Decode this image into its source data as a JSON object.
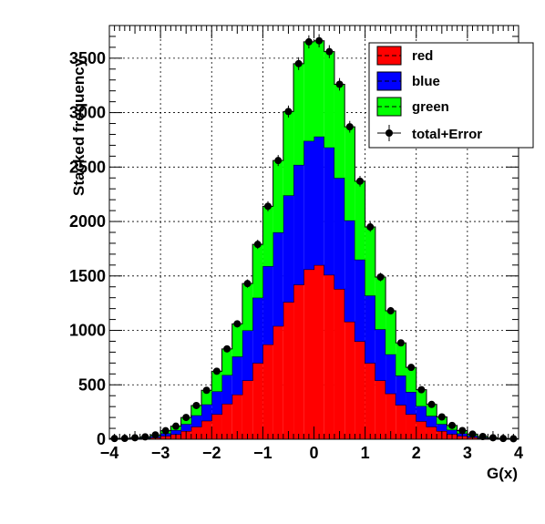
{
  "chart_data": {
    "type": "bar",
    "stacked": true,
    "xlabel": "G(x)",
    "ylabel": "Stacked frequency",
    "xlim": [
      -4,
      4
    ],
    "ylim": [
      0,
      3800
    ],
    "bins": 40,
    "x": [
      -3.9,
      -3.7,
      -3.5,
      -3.3,
      -3.1,
      -2.9,
      -2.7,
      -2.5,
      -2.3,
      -2.1,
      -1.9,
      -1.7,
      -1.5,
      -1.3,
      -1.1,
      -0.9,
      -0.7,
      -0.5,
      -0.3,
      -0.1,
      0.1,
      0.3,
      0.5,
      0.7,
      0.9,
      1.1,
      1.3,
      1.5,
      1.7,
      1.9,
      2.1,
      2.3,
      2.5,
      2.7,
      2.9,
      3.1,
      3.3,
      3.5,
      3.7,
      3.9
    ],
    "series": [
      {
        "name": "red",
        "color": "#ff0000",
        "values": [
          3,
          3,
          5,
          8,
          15,
          30,
          45,
          75,
          115,
          170,
          230,
          325,
          410,
          540,
          700,
          870,
          1040,
          1260,
          1420,
          1560,
          1600,
          1510,
          1380,
          1080,
          900,
          700,
          540,
          420,
          315,
          230,
          165,
          115,
          75,
          47,
          30,
          17,
          9,
          5,
          3,
          2
        ]
      },
      {
        "name": "blue",
        "color": "#0000ff",
        "values": [
          2,
          3,
          5,
          7,
          14,
          25,
          40,
          65,
          105,
          150,
          210,
          265,
          350,
          460,
          600,
          720,
          860,
          980,
          1100,
          1180,
          1180,
          1170,
          1020,
          930,
          750,
          620,
          470,
          360,
          270,
          205,
          140,
          100,
          65,
          40,
          24,
          15,
          8,
          4,
          2,
          1
        ]
      },
      {
        "name": "green",
        "color": "#00ff00",
        "values": [
          2,
          2,
          4,
          7,
          11,
          23,
          35,
          60,
          90,
          130,
          185,
          240,
          300,
          430,
          490,
          550,
          660,
          770,
          930,
          910,
          880,
          880,
          860,
          860,
          720,
          630,
          480,
          400,
          300,
          225,
          150,
          105,
          65,
          40,
          26,
          15,
          8,
          5,
          2,
          2
        ]
      }
    ],
    "total_error": {
      "name": "total+Error",
      "color": "#000000",
      "values": [
        7,
        8,
        14,
        22,
        40,
        78,
        120,
        200,
        310,
        450,
        625,
        830,
        1060,
        1430,
        1790,
        2140,
        2560,
        3010,
        3450,
        3650,
        3660,
        3560,
        3260,
        2870,
        2370,
        1950,
        1490,
        1180,
        885,
        660,
        455,
        320,
        205,
        127,
        80,
        47,
        25,
        14,
        7,
        5
      ]
    },
    "x_ticks": [
      "−4",
      "−3",
      "−2",
      "−1",
      "0",
      "1",
      "2",
      "3",
      "4"
    ],
    "y_ticks": [
      "0",
      "500",
      "1000",
      "1500",
      "2000",
      "2500",
      "3000",
      "3500"
    ],
    "grid": true,
    "legend_position": "top-right"
  }
}
